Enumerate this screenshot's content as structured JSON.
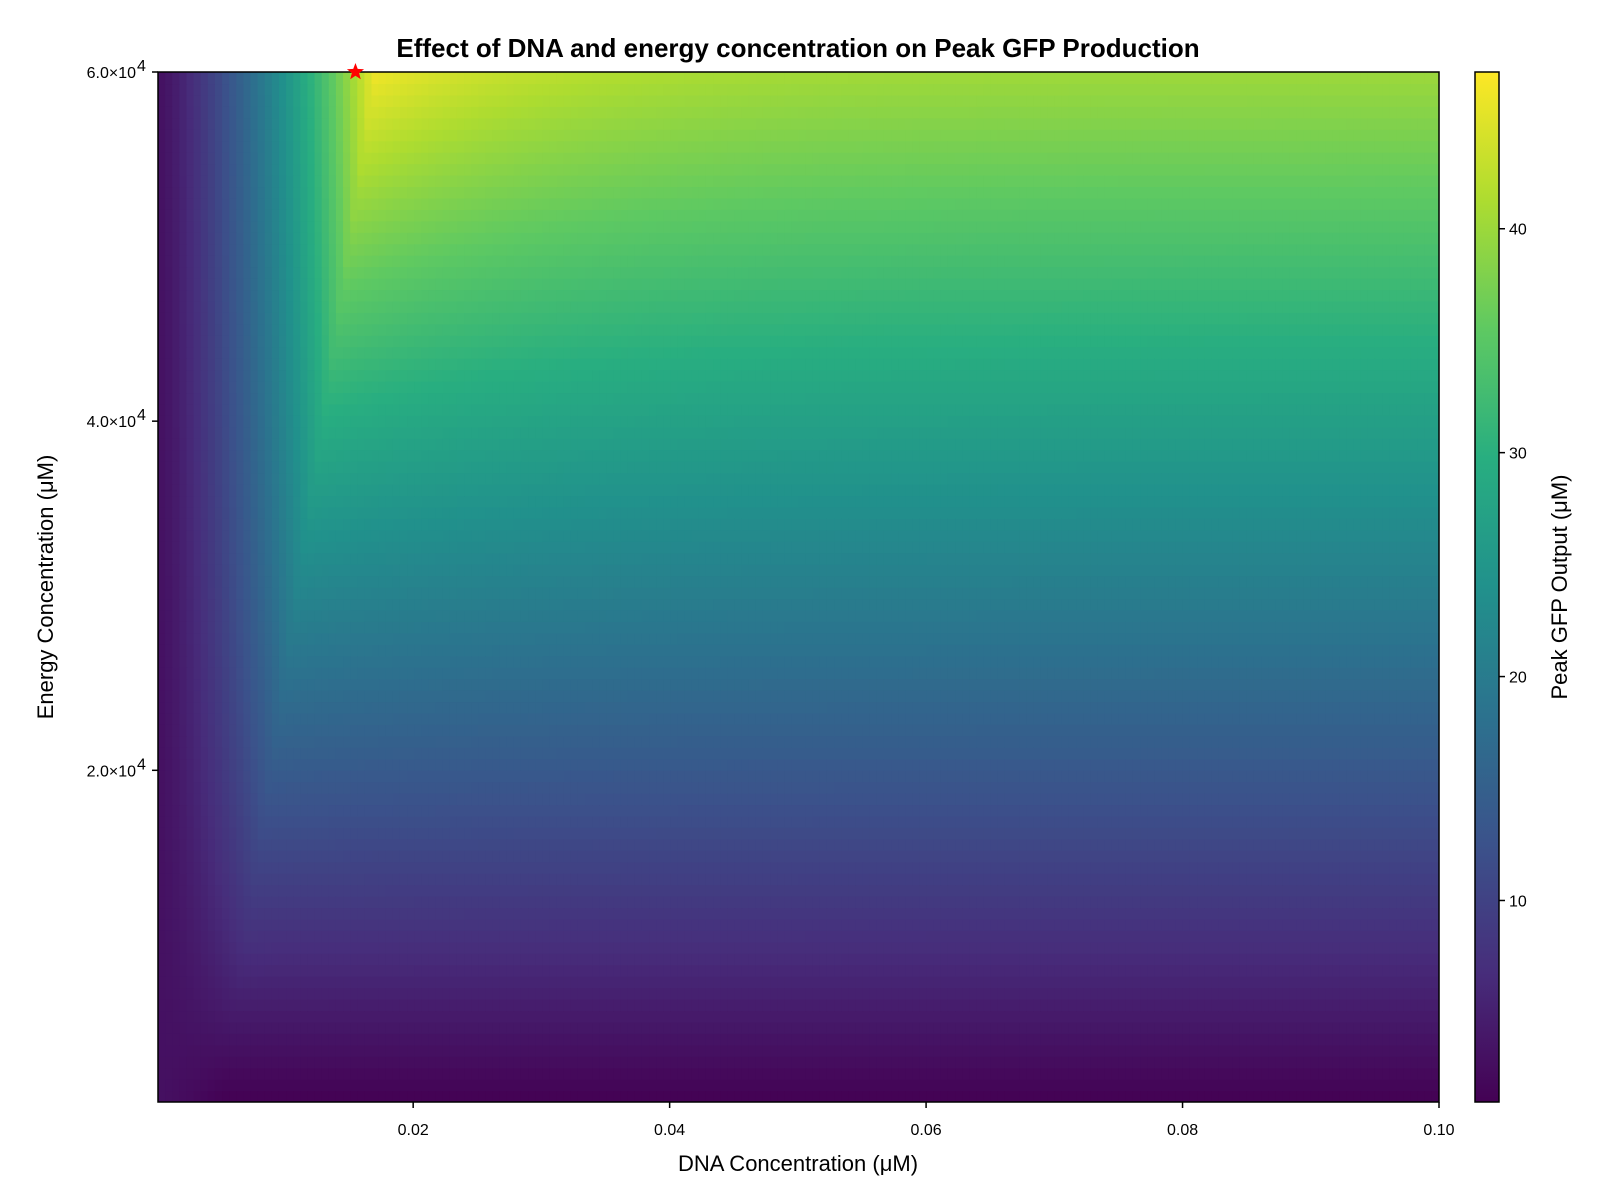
{
  "chart_data": {
    "type": "heatmap",
    "title": "Effect of DNA and energy concentration on Peak GFP Production",
    "xlabel": "DNA Concentration (μM)",
    "ylabel": "Energy Concentration (μM)",
    "colorbar_label": "Peak GFP Output (μM)",
    "xlim": [
      0.0001,
      0.1
    ],
    "ylim": [
      1000,
      60000
    ],
    "clim": [
      1,
      47
    ],
    "colormap": "viridis",
    "x_ticks": [
      {
        "value": 0.02,
        "label": "0.02"
      },
      {
        "value": 0.04,
        "label": "0.04"
      },
      {
        "value": 0.06,
        "label": "0.06"
      },
      {
        "value": 0.08,
        "label": "0.08"
      },
      {
        "value": 0.1,
        "label": "0.10"
      }
    ],
    "y_ticks": [
      {
        "value": 20000,
        "mantissa": "2.0×10",
        "exponent": "4"
      },
      {
        "value": 40000,
        "mantissa": "4.0×10",
        "exponent": "4"
      },
      {
        "value": 60000,
        "mantissa": "6.0×10",
        "exponent": "4"
      }
    ],
    "colorbar_ticks": [
      {
        "value": 10,
        "label": "10"
      },
      {
        "value": 20,
        "label": "20"
      },
      {
        "value": 30,
        "label": "30"
      },
      {
        "value": 40,
        "label": "40"
      }
    ],
    "peak_marker": {
      "x": 0.0155,
      "y": 60000,
      "color": "#ff0000"
    },
    "grid": false
  }
}
